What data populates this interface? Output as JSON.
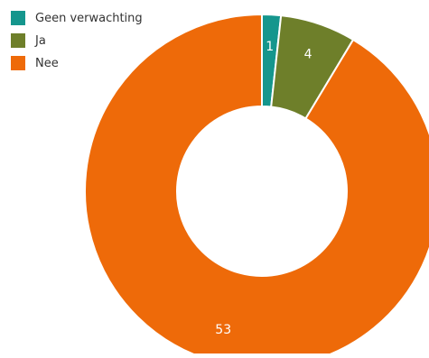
{
  "chart_data": {
    "type": "pie",
    "variant": "donut",
    "title": "",
    "categories": [
      "Geen verwachting",
      "Ja",
      "Nee"
    ],
    "values": [
      1,
      4,
      53
    ],
    "data_labels": [
      "1",
      "4",
      "53"
    ],
    "colors": [
      "#15968d",
      "#6e7f2a",
      "#ee6a09"
    ],
    "label_color": "#ffffff",
    "slice_border_color": "#ffffff",
    "legend_position": "top-left"
  },
  "legend": {
    "items": [
      {
        "label": "Geen verwachting",
        "color": "#15968d"
      },
      {
        "label": "Ja",
        "color": "#6e7f2a"
      },
      {
        "label": "Nee",
        "color": "#ee6a09"
      }
    ]
  }
}
